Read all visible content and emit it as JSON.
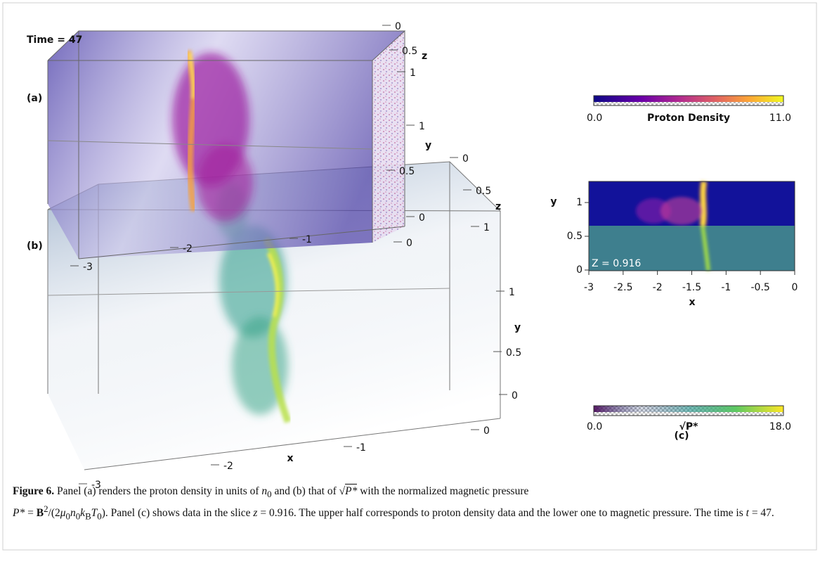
{
  "figure": {
    "time": "Time = 47",
    "panel_a": {
      "label": "(a)",
      "x_ticks": [
        "-3",
        "-2",
        "-1",
        "0"
      ],
      "y_label": "y",
      "y_ticks": [
        "0",
        "0.5",
        "1"
      ],
      "z_label": "z",
      "z_ticks": [
        "0",
        "0.5",
        "1"
      ]
    },
    "panel_b": {
      "label": "(b)",
      "x_label": "x",
      "x_ticks": [
        "-3",
        "-2",
        "-1",
        "0"
      ],
      "y_label": "y",
      "y_ticks": [
        "0",
        "0.5",
        "1"
      ],
      "z_label": "z",
      "z_ticks": [
        "0",
        "0.5",
        "1"
      ]
    },
    "colorbar_density": {
      "min": "0.0",
      "label": "Proton Density",
      "max": "11.0"
    },
    "slice": {
      "label": "(c)",
      "annotation": "Z = 0.916",
      "x_label": "x",
      "x_ticks": [
        "-3",
        "-2.5",
        "-2",
        "-1.5",
        "-1",
        "-0.5",
        "0"
      ],
      "y_label": "y",
      "y_ticks": [
        "0",
        "0.5",
        "1"
      ]
    },
    "colorbar_pressure": {
      "min": "0.0",
      "label": "√P*",
      "max": "18.0"
    }
  },
  "caption": {
    "label": "Figure 6.",
    "parts": [
      "Panel (a) renders the proton density in units of ",
      "n",
      "0",
      " and (b) that of ",
      "√",
      "P*",
      " with the normalized magnetic pressure",
      "P*",
      " = ",
      "B",
      "2",
      "/(2",
      "μ",
      "0",
      "n",
      "0",
      "k",
      "B",
      "T",
      "0",
      "). Panel (c) shows data in the slice ",
      "z",
      " = 0.916. The upper half corresponds to proton density data and the lower one to magnetic pressure. The time is ",
      "t",
      " = 47."
    ]
  }
}
